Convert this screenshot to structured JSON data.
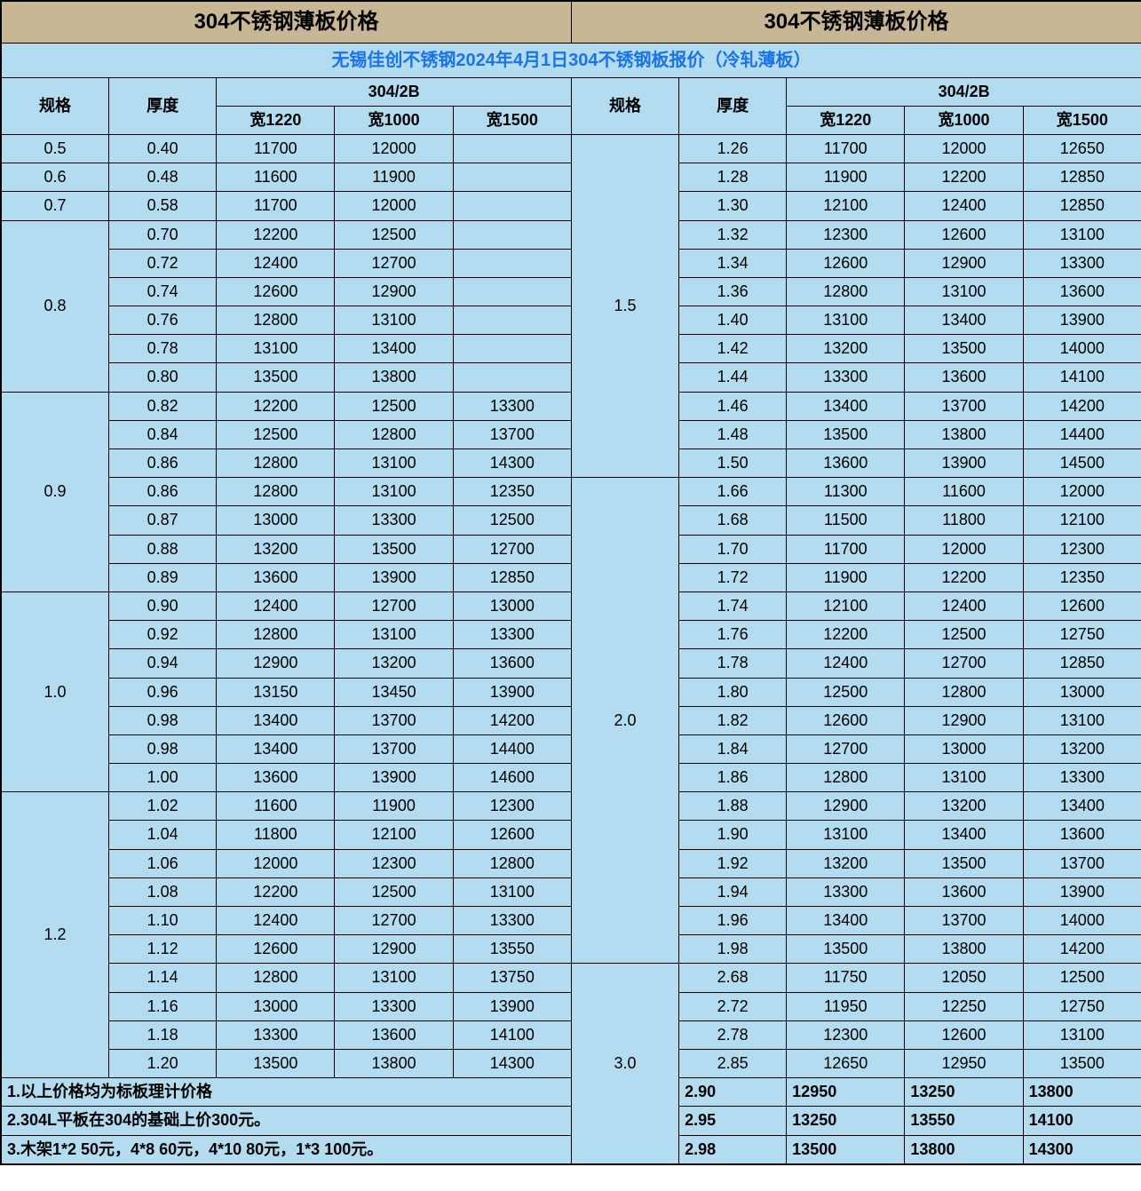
{
  "title_left": "304不锈钢薄板价格",
  "title_right": "304不锈钢薄板价格",
  "subtitle": "无锡佳创不锈钢2024年4月1日304不锈钢板报价（冷轧薄板）",
  "headers": {
    "spec": "规格",
    "thickness": "厚度",
    "group": "304/2B",
    "w1220": "宽1220",
    "w1000": "宽1000",
    "w1500": "宽1500"
  },
  "left_groups": [
    {
      "spec": "0.5",
      "rows": [
        [
          "0.40",
          "11700",
          "12000",
          ""
        ]
      ]
    },
    {
      "spec": "0.6",
      "rows": [
        [
          "0.48",
          "11600",
          "11900",
          ""
        ]
      ]
    },
    {
      "spec": "0.7",
      "rows": [
        [
          "0.58",
          "11700",
          "12000",
          ""
        ]
      ]
    },
    {
      "spec": "0.8",
      "rows": [
        [
          "0.70",
          "12200",
          "12500",
          ""
        ],
        [
          "0.72",
          "12400",
          "12700",
          ""
        ],
        [
          "0.74",
          "12600",
          "12900",
          ""
        ],
        [
          "0.76",
          "12800",
          "13100",
          ""
        ],
        [
          "0.78",
          "13100",
          "13400",
          ""
        ],
        [
          "0.80",
          "13500",
          "13800",
          ""
        ]
      ]
    },
    {
      "spec": "0.9",
      "rows": [
        [
          "0.82",
          "12200",
          "12500",
          "13300"
        ],
        [
          "0.84",
          "12500",
          "12800",
          "13700"
        ],
        [
          "0.86",
          "12800",
          "13100",
          "14300"
        ],
        [
          "0.86",
          "12800",
          "13100",
          "12350"
        ],
        [
          "0.87",
          "13000",
          "13300",
          "12500"
        ],
        [
          "0.88",
          "13200",
          "13500",
          "12700"
        ],
        [
          "0.89",
          "13600",
          "13900",
          "12850"
        ]
      ]
    },
    {
      "spec": "1.0",
      "rows": [
        [
          "0.90",
          "12400",
          "12700",
          "13000"
        ],
        [
          "0.92",
          "12800",
          "13100",
          "13300"
        ],
        [
          "0.94",
          "12900",
          "13200",
          "13600"
        ],
        [
          "0.96",
          "13150",
          "13450",
          "13900"
        ],
        [
          "0.98",
          "13400",
          "13700",
          "14200"
        ],
        [
          "0.98",
          "13400",
          "13700",
          "14400"
        ],
        [
          "1.00",
          "13600",
          "13900",
          "14600"
        ]
      ]
    },
    {
      "spec": "1.2",
      "rows": [
        [
          "1.02",
          "11600",
          "11900",
          "12300"
        ],
        [
          "1.04",
          "11800",
          "12100",
          "12600"
        ],
        [
          "1.06",
          "12000",
          "12300",
          "12800"
        ],
        [
          "1.08",
          "12200",
          "12500",
          "13100"
        ],
        [
          "1.10",
          "12400",
          "12700",
          "13300"
        ],
        [
          "1.12",
          "12600",
          "12900",
          "13550"
        ],
        [
          "1.14",
          "12800",
          "13100",
          "13750"
        ],
        [
          "1.16",
          "13000",
          "13300",
          "13900"
        ],
        [
          "1.18",
          "13300",
          "13600",
          "14100"
        ],
        [
          "1.20",
          "13500",
          "13800",
          "14300"
        ]
      ]
    }
  ],
  "right_groups": [
    {
      "spec": "1.5",
      "rows": [
        [
          "1.26",
          "11700",
          "12000",
          "12650"
        ],
        [
          "1.28",
          "11900",
          "12200",
          "12850"
        ],
        [
          "1.30",
          "12100",
          "12400",
          "12850"
        ],
        [
          "1.32",
          "12300",
          "12600",
          "13100"
        ],
        [
          "1.34",
          "12600",
          "12900",
          "13300"
        ],
        [
          "1.36",
          "12800",
          "13100",
          "13600"
        ],
        [
          "1.40",
          "13100",
          "13400",
          "13900"
        ],
        [
          "1.42",
          "13200",
          "13500",
          "14000"
        ],
        [
          "1.44",
          "13300",
          "13600",
          "14100"
        ],
        [
          "1.46",
          "13400",
          "13700",
          "14200"
        ],
        [
          "1.48",
          "13500",
          "13800",
          "14400"
        ],
        [
          "1.50",
          "13600",
          "13900",
          "14500"
        ]
      ]
    },
    {
      "spec": "2.0",
      "rows": [
        [
          "1.66",
          "11300",
          "11600",
          "12000"
        ],
        [
          "1.68",
          "11500",
          "11800",
          "12100"
        ],
        [
          "1.70",
          "11700",
          "12000",
          "12300"
        ],
        [
          "1.72",
          "11900",
          "12200",
          "12350"
        ],
        [
          "1.74",
          "12100",
          "12400",
          "12600"
        ],
        [
          "1.76",
          "12200",
          "12500",
          "12750"
        ],
        [
          "1.78",
          "12400",
          "12700",
          "12850"
        ],
        [
          "1.80",
          "12500",
          "12800",
          "13000"
        ],
        [
          "1.82",
          "12600",
          "12900",
          "13100"
        ],
        [
          "1.84",
          "12700",
          "13000",
          "13200"
        ],
        [
          "1.86",
          "12800",
          "13100",
          "13300"
        ],
        [
          "1.88",
          "12900",
          "13200",
          "13400"
        ],
        [
          "1.90",
          "13100",
          "13400",
          "13600"
        ],
        [
          "1.92",
          "13200",
          "13500",
          "13700"
        ],
        [
          "1.94",
          "13300",
          "13600",
          "13900"
        ],
        [
          "1.96",
          "13400",
          "13700",
          "14000"
        ],
        [
          "1.98",
          "13500",
          "13800",
          "14200"
        ]
      ]
    },
    {
      "spec": "3.0",
      "rows": [
        [
          "2.68",
          "11750",
          "12050",
          "12500"
        ],
        [
          "2.72",
          "11950",
          "12250",
          "12750"
        ],
        [
          "2.78",
          "12300",
          "12600",
          "13100"
        ],
        [
          "2.85",
          "12650",
          "12950",
          "13500"
        ],
        [
          "2.90",
          "12950",
          "13250",
          "13800"
        ],
        [
          "2.95",
          "13250",
          "13550",
          "14100"
        ],
        [
          "2.98",
          "13500",
          "13800",
          "14300"
        ]
      ]
    }
  ],
  "notes": [
    "1.以上价格均为标板理计价格",
    "2.304L平板在304的基础上价300元。",
    "3.木架1*2 50元，4*8 60元，4*10 80元，1*3 100元。"
  ],
  "colors": {
    "title_bg": "#c7b795",
    "data_bg": "#b3dcf0",
    "subtitle_color": "#1a73e8",
    "border": "#000000"
  },
  "font": {
    "title_size": 24,
    "header_size": 18,
    "data_size": 18,
    "subtitle_size": 20
  }
}
